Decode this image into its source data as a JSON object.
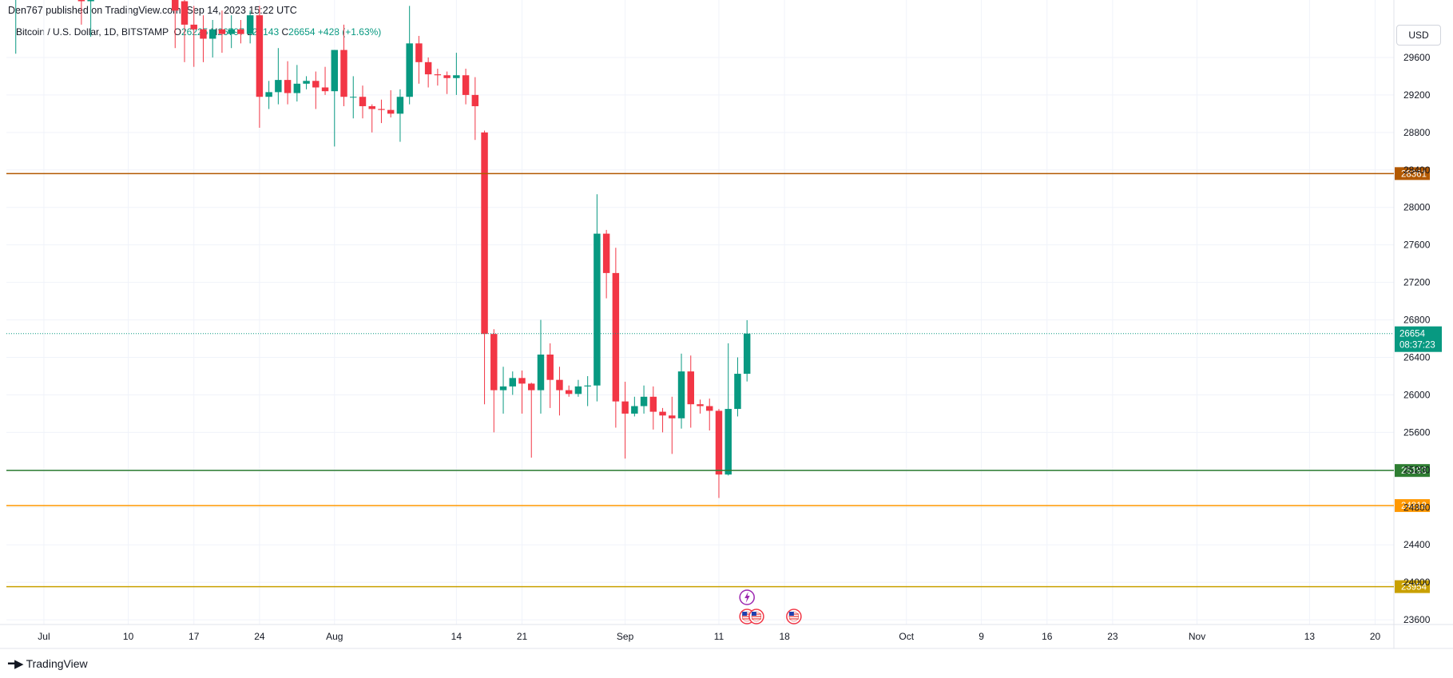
{
  "header": {
    "publish_info": "Den767 published on TradingView.com, Sep 14, 2023 15:22 UTC",
    "symbol": "Bitcoin / U.S. Dollar, 1D, BITSTAMP",
    "ohlc": {
      "open_label": "O",
      "open": "26225",
      "high_label": "H",
      "high": "26797",
      "low_label": "L",
      "low": "26143",
      "close_label": "C",
      "close": "26654",
      "change": "+428 (+1.63%)"
    },
    "currency": "USD"
  },
  "footer": {
    "brand": "TradingView"
  },
  "colors": {
    "up": "#089981",
    "down": "#f23645",
    "grid": "#f0f3fa",
    "line_28361": "#b35900",
    "line_25193": "#2e7d32",
    "line_24819": "#ff9800",
    "line_23954": "#c9a000"
  },
  "chart_data": {
    "type": "candlestick",
    "symbol": "BTCUSD",
    "interval": "1D",
    "ylim": [
      23550,
      30000
    ],
    "y_ticks": [
      23600,
      24000,
      24400,
      24800,
      25200,
      25600,
      26000,
      26400,
      26800,
      27200,
      27600,
      28000,
      28400,
      28800,
      29200,
      29600
    ],
    "y_tick_labels": [
      "23600",
      "24000",
      "24400",
      "24800",
      "25200",
      "25600",
      "26000",
      "26400",
      "26800",
      "27200",
      "27600",
      "28000",
      "28400",
      "28800",
      "29200",
      "29600"
    ],
    "x_start": "2023-06-27",
    "x_end": "2023-11-22",
    "x_ticks": [
      {
        "date": "2023-07-01",
        "label": "Jul"
      },
      {
        "date": "2023-07-10",
        "label": "10"
      },
      {
        "date": "2023-07-17",
        "label": "17"
      },
      {
        "date": "2023-07-24",
        "label": "24"
      },
      {
        "date": "2023-08-01",
        "label": "Aug"
      },
      {
        "date": "2023-08-14",
        "label": "14"
      },
      {
        "date": "2023-08-21",
        "label": "21"
      },
      {
        "date": "2023-09-01",
        "label": "Sep"
      },
      {
        "date": "2023-09-11",
        "label": "11"
      },
      {
        "date": "2023-09-18",
        "label": "18"
      },
      {
        "date": "2023-10-01",
        "label": "Oct"
      },
      {
        "date": "2023-10-09",
        "label": "9"
      },
      {
        "date": "2023-10-16",
        "label": "16"
      },
      {
        "date": "2023-10-23",
        "label": "23"
      },
      {
        "date": "2023-11-01",
        "label": "Nov"
      },
      {
        "date": "2023-11-13",
        "label": "13"
      },
      {
        "date": "2023-11-20",
        "label": "20"
      }
    ],
    "candles": [
      {
        "date": "2023-06-28",
        "o": 30680,
        "h": 30780,
        "l": 29640,
        "c": 30720
      },
      {
        "date": "2023-07-05",
        "o": 30500,
        "h": 30700,
        "l": 29950,
        "c": 30200
      },
      {
        "date": "2023-07-06",
        "o": 30200,
        "h": 30500,
        "l": 29820,
        "c": 30400
      },
      {
        "date": "2023-07-15",
        "o": 30300,
        "h": 30400,
        "l": 29700,
        "c": 30100
      },
      {
        "date": "2023-07-16",
        "o": 30200,
        "h": 30350,
        "l": 29550,
        "c": 29950
      },
      {
        "date": "2023-07-17",
        "o": 29950,
        "h": 30150,
        "l": 29500,
        "c": 29900
      },
      {
        "date": "2023-07-18",
        "o": 29900,
        "h": 30050,
        "l": 29550,
        "c": 29800
      },
      {
        "date": "2023-07-19",
        "o": 29800,
        "h": 30000,
        "l": 29600,
        "c": 29900
      },
      {
        "date": "2023-07-20",
        "o": 29900,
        "h": 30100,
        "l": 29650,
        "c": 29850
      },
      {
        "date": "2023-07-21",
        "o": 29850,
        "h": 30050,
        "l": 29700,
        "c": 29900
      },
      {
        "date": "2023-07-22",
        "o": 29900,
        "h": 30000,
        "l": 29750,
        "c": 29850
      },
      {
        "date": "2023-07-23",
        "o": 29850,
        "h": 30100,
        "l": 29750,
        "c": 30050
      },
      {
        "date": "2023-07-24",
        "o": 30050,
        "h": 30150,
        "l": 28850,
        "c": 29180
      },
      {
        "date": "2023-07-25",
        "o": 29180,
        "h": 29350,
        "l": 29050,
        "c": 29230
      },
      {
        "date": "2023-07-26",
        "o": 29230,
        "h": 29700,
        "l": 29100,
        "c": 29360
      },
      {
        "date": "2023-07-27",
        "o": 29360,
        "h": 29560,
        "l": 29100,
        "c": 29220
      },
      {
        "date": "2023-07-28",
        "o": 29220,
        "h": 29520,
        "l": 29130,
        "c": 29320
      },
      {
        "date": "2023-07-29",
        "o": 29320,
        "h": 29400,
        "l": 29260,
        "c": 29350
      },
      {
        "date": "2023-07-30",
        "o": 29350,
        "h": 29450,
        "l": 29050,
        "c": 29280
      },
      {
        "date": "2023-07-31",
        "o": 29280,
        "h": 29500,
        "l": 29200,
        "c": 29240
      },
      {
        "date": "2023-08-01",
        "o": 29240,
        "h": 29680,
        "l": 28650,
        "c": 29680
      },
      {
        "date": "2023-08-02",
        "o": 29680,
        "h": 29950,
        "l": 29080,
        "c": 29180
      },
      {
        "date": "2023-08-03",
        "o": 29180,
        "h": 29400,
        "l": 28950,
        "c": 29180
      },
      {
        "date": "2023-08-04",
        "o": 29180,
        "h": 29300,
        "l": 28950,
        "c": 29080
      },
      {
        "date": "2023-08-05",
        "o": 29080,
        "h": 29100,
        "l": 28800,
        "c": 29050
      },
      {
        "date": "2023-08-06",
        "o": 29050,
        "h": 29150,
        "l": 28900,
        "c": 29040
      },
      {
        "date": "2023-08-07",
        "o": 29040,
        "h": 29250,
        "l": 28960,
        "c": 29000
      },
      {
        "date": "2023-08-08",
        "o": 29000,
        "h": 29260,
        "l": 28700,
        "c": 29180
      },
      {
        "date": "2023-08-09",
        "o": 29180,
        "h": 30150,
        "l": 29100,
        "c": 29750
      },
      {
        "date": "2023-08-10",
        "o": 29750,
        "h": 29830,
        "l": 29320,
        "c": 29550
      },
      {
        "date": "2023-08-11",
        "o": 29550,
        "h": 29600,
        "l": 29280,
        "c": 29420
      },
      {
        "date": "2023-08-12",
        "o": 29420,
        "h": 29480,
        "l": 29300,
        "c": 29410
      },
      {
        "date": "2023-08-13",
        "o": 29410,
        "h": 29450,
        "l": 29210,
        "c": 29380
      },
      {
        "date": "2023-08-14",
        "o": 29380,
        "h": 29650,
        "l": 29200,
        "c": 29410
      },
      {
        "date": "2023-08-15",
        "o": 29410,
        "h": 29480,
        "l": 29100,
        "c": 29200
      },
      {
        "date": "2023-08-16",
        "o": 29200,
        "h": 29390,
        "l": 28720,
        "c": 29080
      },
      {
        "date": "2023-08-17",
        "o": 28800,
        "h": 28820,
        "l": 25900,
        "c": 26650
      },
      {
        "date": "2023-08-18",
        "o": 26650,
        "h": 26700,
        "l": 25600,
        "c": 26050
      },
      {
        "date": "2023-08-19",
        "o": 26050,
        "h": 26300,
        "l": 25800,
        "c": 26090
      },
      {
        "date": "2023-08-20",
        "o": 26090,
        "h": 26250,
        "l": 26000,
        "c": 26180
      },
      {
        "date": "2023-08-21",
        "o": 26180,
        "h": 26260,
        "l": 25800,
        "c": 26120
      },
      {
        "date": "2023-08-22",
        "o": 26120,
        "h": 26130,
        "l": 25330,
        "c": 26050
      },
      {
        "date": "2023-08-23",
        "o": 26050,
        "h": 26800,
        "l": 25800,
        "c": 26430
      },
      {
        "date": "2023-08-24",
        "o": 26430,
        "h": 26550,
        "l": 25860,
        "c": 26160
      },
      {
        "date": "2023-08-25",
        "o": 26160,
        "h": 26300,
        "l": 25780,
        "c": 26050
      },
      {
        "date": "2023-08-26",
        "o": 26050,
        "h": 26100,
        "l": 25980,
        "c": 26010
      },
      {
        "date": "2023-08-27",
        "o": 26010,
        "h": 26160,
        "l": 25980,
        "c": 26090
      },
      {
        "date": "2023-08-28",
        "o": 26090,
        "h": 26200,
        "l": 25880,
        "c": 26100
      },
      {
        "date": "2023-08-29",
        "o": 26100,
        "h": 28140,
        "l": 25930,
        "c": 27720
      },
      {
        "date": "2023-08-30",
        "o": 27720,
        "h": 27760,
        "l": 27030,
        "c": 27300
      },
      {
        "date": "2023-08-31",
        "o": 27300,
        "h": 27570,
        "l": 25650,
        "c": 25930
      },
      {
        "date": "2023-09-01",
        "o": 25930,
        "h": 26140,
        "l": 25320,
        "c": 25800
      },
      {
        "date": "2023-09-02",
        "o": 25800,
        "h": 25980,
        "l": 25770,
        "c": 25880
      },
      {
        "date": "2023-09-03",
        "o": 25880,
        "h": 26100,
        "l": 25800,
        "c": 25980
      },
      {
        "date": "2023-09-04",
        "o": 25980,
        "h": 26090,
        "l": 25630,
        "c": 25820
      },
      {
        "date": "2023-09-05",
        "o": 25820,
        "h": 25860,
        "l": 25600,
        "c": 25780
      },
      {
        "date": "2023-09-06",
        "o": 25780,
        "h": 25980,
        "l": 25370,
        "c": 25750
      },
      {
        "date": "2023-09-07",
        "o": 25750,
        "h": 26440,
        "l": 25640,
        "c": 26250
      },
      {
        "date": "2023-09-08",
        "o": 26250,
        "h": 26420,
        "l": 25650,
        "c": 25900
      },
      {
        "date": "2023-09-09",
        "o": 25900,
        "h": 25950,
        "l": 25800,
        "c": 25880
      },
      {
        "date": "2023-09-10",
        "o": 25880,
        "h": 25960,
        "l": 25620,
        "c": 25830
      },
      {
        "date": "2023-09-11",
        "o": 25830,
        "h": 25850,
        "l": 24900,
        "c": 25150
      },
      {
        "date": "2023-09-12",
        "o": 25150,
        "h": 26550,
        "l": 25140,
        "c": 25850
      },
      {
        "date": "2023-09-13",
        "o": 25850,
        "h": 26400,
        "l": 25770,
        "c": 26225
      },
      {
        "date": "2023-09-14",
        "o": 26225,
        "h": 26797,
        "l": 26143,
        "c": 26654
      }
    ],
    "horizontal_levels": [
      {
        "value": 28361,
        "label": "28361",
        "color": "#b35900"
      },
      {
        "value": 25193,
        "label": "25193",
        "color": "#2e7d32"
      },
      {
        "value": 24819,
        "label": "24819",
        "color": "#ff9800"
      },
      {
        "value": 23954,
        "label": "23954",
        "color": "#c9a000"
      }
    ],
    "last_price": {
      "value": 26654,
      "label": "26654",
      "countdown": "08:37:23",
      "color": "#089981"
    },
    "events": [
      {
        "date": "2023-09-14",
        "type": "lightning-icon"
      },
      {
        "date": "2023-09-14",
        "type": "us-flag-icon"
      },
      {
        "date": "2023-09-15",
        "type": "us-flag-icon"
      },
      {
        "date": "2023-09-19",
        "type": "us-flag-icon"
      }
    ],
    "grid": true
  }
}
